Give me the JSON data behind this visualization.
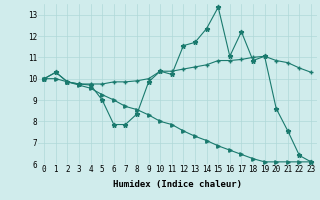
{
  "xlabel": "Humidex (Indice chaleur)",
  "bg_color": "#d0ecec",
  "line_color": "#1a7a6e",
  "grid_color": "#b0d8d8",
  "xlim": [
    -0.5,
    23.5
  ],
  "ylim": [
    6,
    13.5
  ],
  "yticks": [
    6,
    7,
    8,
    9,
    10,
    11,
    12,
    13
  ],
  "xticks": [
    0,
    1,
    2,
    3,
    4,
    5,
    6,
    7,
    8,
    9,
    10,
    11,
    12,
    13,
    14,
    15,
    16,
    17,
    18,
    19,
    20,
    21,
    22,
    23
  ],
  "line1_x": [
    0,
    1,
    2,
    3,
    4,
    5,
    6,
    7,
    8,
    9,
    10,
    11,
    12,
    13,
    14,
    15,
    16,
    17,
    18,
    19,
    20,
    21,
    22,
    23
  ],
  "line1_y": [
    10.0,
    10.3,
    9.85,
    9.75,
    9.7,
    9.0,
    7.85,
    7.85,
    8.35,
    9.85,
    10.35,
    10.2,
    11.55,
    11.7,
    12.35,
    13.35,
    11.05,
    12.2,
    10.85,
    11.05,
    8.6,
    7.55,
    6.4,
    6.1
  ],
  "line2_x": [
    0,
    1,
    2,
    3,
    4,
    5,
    6,
    7,
    8,
    9,
    10,
    11,
    12,
    13,
    14,
    15,
    16,
    17,
    18,
    19,
    20,
    21,
    22,
    23
  ],
  "line2_y": [
    10.0,
    10.3,
    9.85,
    9.75,
    9.75,
    9.75,
    9.85,
    9.85,
    9.9,
    10.0,
    10.35,
    10.35,
    10.45,
    10.55,
    10.65,
    10.85,
    10.85,
    10.9,
    11.0,
    11.05,
    10.85,
    10.75,
    10.5,
    10.3
  ],
  "line3_x": [
    0,
    1,
    2,
    3,
    4,
    5,
    6,
    7,
    8,
    9,
    10,
    11,
    12,
    13,
    14,
    15,
    16,
    17,
    18,
    19,
    20,
    21,
    22,
    23
  ],
  "line3_y": [
    10.0,
    10.0,
    9.85,
    9.7,
    9.55,
    9.25,
    9.0,
    8.7,
    8.55,
    8.3,
    8.0,
    7.85,
    7.55,
    7.3,
    7.1,
    6.85,
    6.65,
    6.45,
    6.25,
    6.1,
    6.1,
    6.1,
    6.1,
    6.1
  ],
  "font_family": "monospace"
}
